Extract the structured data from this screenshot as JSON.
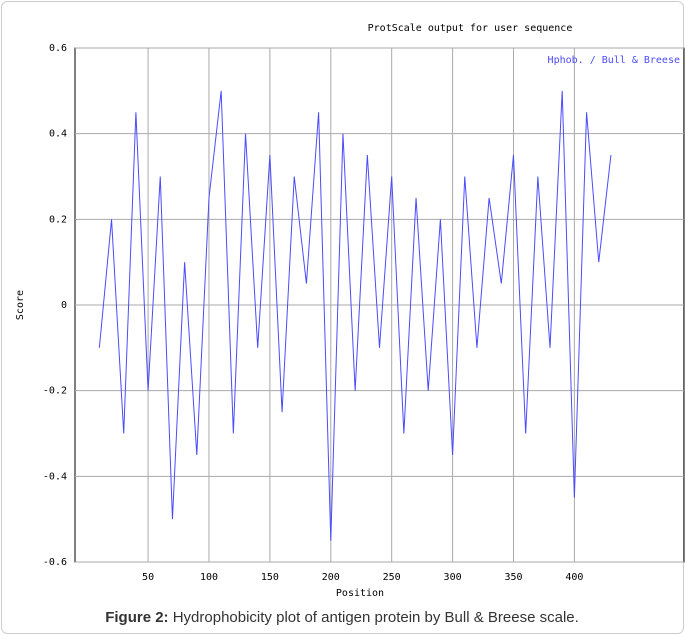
{
  "chart_data": {
    "type": "line",
    "title": "ProtScale output for user sequence",
    "x_label": "Position",
    "y_label": "Score",
    "x": [
      10,
      20,
      30,
      40,
      50,
      60,
      70,
      80,
      90,
      100,
      110,
      120,
      130,
      140,
      150,
      160,
      170,
      180,
      190,
      200,
      210,
      220,
      230,
      240,
      250,
      260,
      270,
      280,
      290,
      300,
      310,
      320,
      330,
      340,
      350,
      360,
      370,
      380,
      390,
      400,
      410,
      420,
      430
    ],
    "series": [
      {
        "name": "Hphob. / Bull & Breese",
        "color": "#4b4bff",
        "values": [
          -0.1,
          0.2,
          -0.3,
          0.45,
          -0.2,
          0.3,
          -0.5,
          0.1,
          -0.35,
          0.25,
          0.5,
          -0.3,
          0.4,
          -0.1,
          0.35,
          -0.25,
          0.3,
          0.05,
          0.45,
          -0.55,
          0.4,
          -0.2,
          0.35,
          -0.1,
          0.3,
          -0.3,
          0.25,
          -0.2,
          0.2,
          -0.35,
          0.3,
          -0.1,
          0.25,
          0.05,
          0.35,
          -0.3,
          0.3,
          -0.1,
          0.5,
          -0.45,
          0.45,
          0.1,
          0.35
        ]
      }
    ],
    "xlim": [
      -10,
      490
    ],
    "xticks": [
      50,
      100,
      150,
      200,
      250,
      300,
      350,
      400
    ],
    "ylim": [
      -0.6,
      0.6
    ],
    "yticks": [
      -0.6,
      -0.4,
      -0.2,
      0,
      0.2,
      0.4,
      0.6
    ],
    "grid": true,
    "legend": "top-right"
  },
  "caption": {
    "label": "Figure 2:",
    "text": "Hydrophobicity plot of antigen protein by Bull & Breese scale."
  }
}
